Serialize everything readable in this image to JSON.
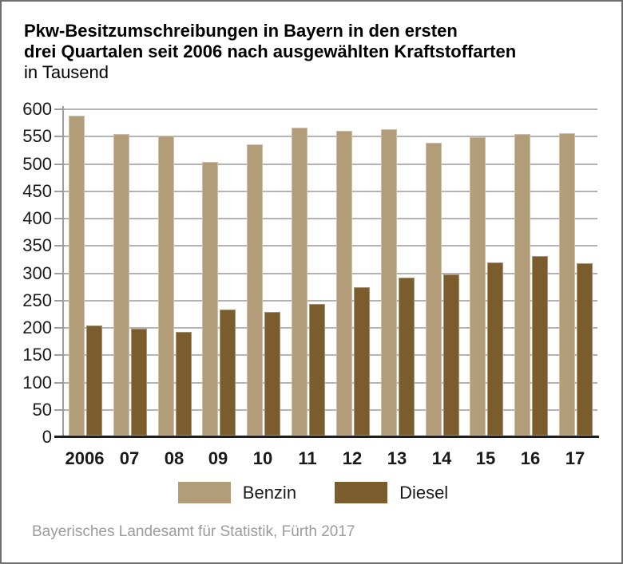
{
  "title": {
    "line1": "Pkw-Besitzumschreibungen in Bayern in den ersten",
    "line2": "drei Quartalen seit 2006 nach ausgewählten Kraftstoffarten",
    "subtitle": "in Tausend"
  },
  "source": "Bayerisches Landesamt für Statistik, Fürth 2017",
  "colors": {
    "benzin": "#b39c7a",
    "diesel": "#7a5c2d",
    "gridline": "#b3b3b3",
    "axis": "#9e9e9e",
    "baseline": "#1f1f1f",
    "text": "#1a1a1a",
    "source_text": "#9b9b9b"
  },
  "chart_data": {
    "type": "bar",
    "title": "Pkw-Besitzumschreibungen in Bayern in den ersten drei Quartalen seit 2006 nach ausgewählten Kraftstoffarten",
    "subtitle": "in Tausend",
    "categories": [
      "2006",
      "07",
      "08",
      "09",
      "10",
      "11",
      "12",
      "13",
      "14",
      "15",
      "16",
      "17"
    ],
    "series": [
      {
        "name": "Benzin",
        "color": "#b39c7a",
        "values": [
          585,
          552,
          549,
          500,
          533,
          563,
          558,
          560,
          536,
          546,
          552,
          553
        ]
      },
      {
        "name": "Diesel",
        "color": "#7a5c2d",
        "values": [
          201,
          196,
          190,
          230,
          227,
          241,
          272,
          289,
          295,
          317,
          328,
          316
        ]
      }
    ],
    "ylabel": "in Tausend",
    "ylim": [
      0,
      600
    ],
    "y_tick_step": 50,
    "grid": true,
    "legend_position": "bottom"
  }
}
